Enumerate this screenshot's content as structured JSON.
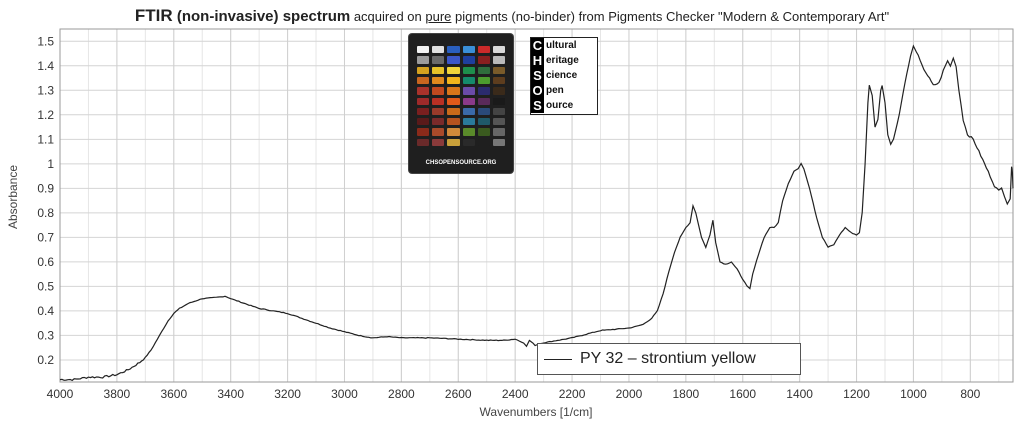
{
  "title": {
    "bold": "FTIR",
    "mid": " (non-invasive) spectrum",
    "pre": " acquired on ",
    "underlined": "pure",
    "post": " pigments (no-binder) from Pigments Checker \"Modern & Contemporary Art\""
  },
  "logo": {
    "caps": [
      "C",
      "H",
      "S",
      "O",
      "S"
    ],
    "rest": [
      "ultural",
      "eritage",
      "cience",
      "pen",
      "ource"
    ]
  },
  "checker": {
    "site": "CHSOPENSOURCE.ORG",
    "swatch_colors": [
      "#f2f2f2",
      "#e0e0e0",
      "#2a5fbf",
      "#3a8fd8",
      "#cc2a2a",
      "#d9d9d9",
      "#9c9c9c",
      "#6a6a6a",
      "#3b57c9",
      "#1e3f9e",
      "#8a1f1f",
      "#bbbbbb",
      "#d6a21f",
      "#e7c229",
      "#f0d53b",
      "#1e8f4c",
      "#2f6e3c",
      "#7a5b2a",
      "#c8661f",
      "#e08a1e",
      "#f2b51c",
      "#158a6b",
      "#4c9c2e",
      "#5d3d1e",
      "#a8322b",
      "#c1491f",
      "#d9761a",
      "#6a4ba8",
      "#2b2b6e",
      "#3a2a1a",
      "#9e2a2a",
      "#b83024",
      "#e05a1a",
      "#8a3a8a",
      "#5a2a5a",
      "#1a1a1a",
      "#7a1f1f",
      "#9a3a2a",
      "#c96a1a",
      "#3a6aa8",
      "#2a4a7a",
      "#444444",
      "#5a1a1a",
      "#7a2a2a",
      "#b5531f",
      "#2a7a9a",
      "#1f5a6a",
      "#555555",
      "#8a2a1a",
      "#a84a2a",
      "#d08a3a",
      "#5a8a2a",
      "#3a5a1f",
      "#666666",
      "#6a2a2a",
      "#8a3a3a",
      "#c9a03a",
      "#2a2a2a",
      "#1f1f1f",
      "#777777"
    ]
  },
  "legend": {
    "label": "PY 32 – strontium yellow"
  },
  "chart_data": {
    "type": "line",
    "title": "FTIR (non-invasive) spectrum acquired on pure pigments (no-binder) from Pigments Checker \"Modern & Contemporary Art\"",
    "xlabel": "Wavenumbers [1/cm]",
    "ylabel": "Absorbance",
    "xlim": [
      4000,
      650
    ],
    "ylim": [
      0.11,
      1.55
    ],
    "x_reversed": true,
    "grid": true,
    "legend_position": "bottom-center",
    "x_ticks": [
      4000,
      3800,
      3600,
      3400,
      3200,
      3000,
      2800,
      2600,
      2400,
      2200,
      2000,
      1800,
      1600,
      1400,
      1200,
      1000,
      800
    ],
    "y_ticks": [
      0.2,
      0.3,
      0.4,
      0.5,
      0.6,
      0.7,
      0.8,
      0.9,
      1,
      1.1,
      1.2,
      1.3,
      1.4,
      1.5
    ],
    "series": [
      {
        "name": "PY 32 – strontium yellow",
        "color": "#222222",
        "points": [
          [
            4000,
            0.12
          ],
          [
            3950,
            0.12
          ],
          [
            3900,
            0.13
          ],
          [
            3850,
            0.13
          ],
          [
            3800,
            0.14
          ],
          [
            3760,
            0.16
          ],
          [
            3720,
            0.19
          ],
          [
            3700,
            0.21
          ],
          [
            3680,
            0.24
          ],
          [
            3650,
            0.3
          ],
          [
            3620,
            0.36
          ],
          [
            3600,
            0.39
          ],
          [
            3580,
            0.41
          ],
          [
            3550,
            0.43
          ],
          [
            3500,
            0.45
          ],
          [
            3450,
            0.455
          ],
          [
            3420,
            0.46
          ],
          [
            3400,
            0.45
          ],
          [
            3350,
            0.43
          ],
          [
            3300,
            0.41
          ],
          [
            3250,
            0.4
          ],
          [
            3200,
            0.39
          ],
          [
            3150,
            0.37
          ],
          [
            3100,
            0.35
          ],
          [
            3050,
            0.33
          ],
          [
            3000,
            0.315
          ],
          [
            2950,
            0.3
          ],
          [
            2900,
            0.29
          ],
          [
            2850,
            0.295
          ],
          [
            2800,
            0.29
          ],
          [
            2700,
            0.29
          ],
          [
            2600,
            0.285
          ],
          [
            2500,
            0.28
          ],
          [
            2440,
            0.28
          ],
          [
            2400,
            0.285
          ],
          [
            2370,
            0.27
          ],
          [
            2360,
            0.255
          ],
          [
            2350,
            0.28
          ],
          [
            2330,
            0.26
          ],
          [
            2300,
            0.27
          ],
          [
            2250,
            0.28
          ],
          [
            2200,
            0.29
          ],
          [
            2150,
            0.305
          ],
          [
            2100,
            0.32
          ],
          [
            2050,
            0.325
          ],
          [
            2000,
            0.33
          ],
          [
            1980,
            0.335
          ],
          [
            1950,
            0.345
          ],
          [
            1920,
            0.37
          ],
          [
            1900,
            0.4
          ],
          [
            1880,
            0.47
          ],
          [
            1860,
            0.56
          ],
          [
            1840,
            0.64
          ],
          [
            1820,
            0.7
          ],
          [
            1800,
            0.74
          ],
          [
            1785,
            0.76
          ],
          [
            1775,
            0.83
          ],
          [
            1765,
            0.8
          ],
          [
            1745,
            0.7
          ],
          [
            1730,
            0.66
          ],
          [
            1715,
            0.71
          ],
          [
            1705,
            0.77
          ],
          [
            1695,
            0.68
          ],
          [
            1680,
            0.6
          ],
          [
            1660,
            0.59
          ],
          [
            1640,
            0.6
          ],
          [
            1620,
            0.57
          ],
          [
            1600,
            0.53
          ],
          [
            1585,
            0.5
          ],
          [
            1575,
            0.49
          ],
          [
            1565,
            0.55
          ],
          [
            1545,
            0.63
          ],
          [
            1525,
            0.7
          ],
          [
            1505,
            0.74
          ],
          [
            1490,
            0.74
          ],
          [
            1475,
            0.76
          ],
          [
            1460,
            0.85
          ],
          [
            1440,
            0.92
          ],
          [
            1420,
            0.97
          ],
          [
            1405,
            0.98
          ],
          [
            1395,
            1.0
          ],
          [
            1385,
            0.98
          ],
          [
            1365,
            0.9
          ],
          [
            1340,
            0.78
          ],
          [
            1320,
            0.7
          ],
          [
            1300,
            0.66
          ],
          [
            1280,
            0.67
          ],
          [
            1260,
            0.71
          ],
          [
            1240,
            0.74
          ],
          [
            1220,
            0.72
          ],
          [
            1200,
            0.71
          ],
          [
            1190,
            0.72
          ],
          [
            1180,
            0.8
          ],
          [
            1170,
            1.0
          ],
          [
            1160,
            1.25
          ],
          [
            1155,
            1.32
          ],
          [
            1145,
            1.28
          ],
          [
            1135,
            1.15
          ],
          [
            1125,
            1.18
          ],
          [
            1115,
            1.3
          ],
          [
            1110,
            1.32
          ],
          [
            1100,
            1.25
          ],
          [
            1090,
            1.12
          ],
          [
            1080,
            1.08
          ],
          [
            1070,
            1.1
          ],
          [
            1050,
            1.2
          ],
          [
            1030,
            1.33
          ],
          [
            1010,
            1.44
          ],
          [
            1000,
            1.48
          ],
          [
            990,
            1.46
          ],
          [
            970,
            1.4
          ],
          [
            950,
            1.36
          ],
          [
            930,
            1.32
          ],
          [
            910,
            1.33
          ],
          [
            895,
            1.38
          ],
          [
            880,
            1.42
          ],
          [
            870,
            1.4
          ],
          [
            860,
            1.43
          ],
          [
            850,
            1.4
          ],
          [
            840,
            1.3
          ],
          [
            825,
            1.18
          ],
          [
            810,
            1.12
          ],
          [
            790,
            1.1
          ],
          [
            770,
            1.05
          ],
          [
            750,
            1.0
          ],
          [
            730,
            0.95
          ],
          [
            715,
            0.91
          ],
          [
            700,
            0.89
          ],
          [
            690,
            0.9
          ],
          [
            680,
            0.87
          ],
          [
            670,
            0.84
          ],
          [
            660,
            0.86
          ],
          [
            655,
            0.99
          ],
          [
            652,
            0.96
          ],
          [
            650,
            0.9
          ]
        ]
      }
    ]
  }
}
